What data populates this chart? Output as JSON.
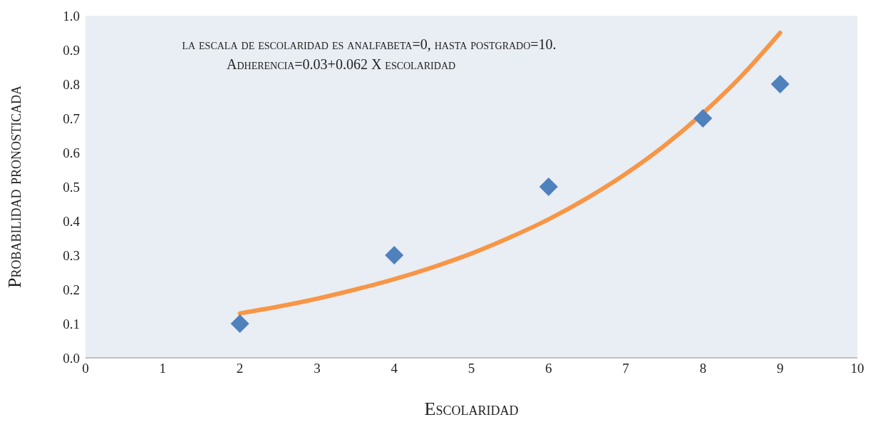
{
  "chart_data": {
    "type": "scatter",
    "xlabel": "Escolaridad",
    "ylabel": "Probabilidad pronosticada",
    "annotations": [
      "la escala de escolaridad es analfabeta=0, hasta postgrado=10.",
      "Adherencia=0.03+0.062 X escolaridad"
    ],
    "series": [
      {
        "color": "#4f81bd",
        "marker": "diamond",
        "x": [
          2,
          4,
          6,
          8,
          9
        ],
        "values": [
          0.1,
          0.3,
          0.5,
          0.7,
          0.8
        ]
      },
      {
        "type": "line",
        "color": "#f79646",
        "marker": "none",
        "x": [
          2,
          2.5,
          3,
          3.5,
          4,
          4.5,
          5,
          5.5,
          6,
          6.5,
          7,
          7.5,
          8,
          8.5,
          9
        ],
        "values": [
          0.13,
          0.15,
          0.173,
          0.2,
          0.23,
          0.265,
          0.305,
          0.352,
          0.405,
          0.467,
          0.538,
          0.62,
          0.715,
          0.824,
          0.95
        ]
      }
    ],
    "xlim": [
      0,
      10
    ],
    "xticks": [
      0,
      1,
      2,
      3,
      4,
      5,
      6,
      7,
      8,
      9,
      10
    ],
    "ylim": [
      0,
      1
    ],
    "yticks": [
      {
        "value": 0,
        "label": "0.0"
      },
      {
        "value": 0.1,
        "label": "0.1"
      },
      {
        "value": 0.2,
        "label": "0.2"
      },
      {
        "value": 0.3,
        "label": "0.3"
      },
      {
        "value": 0.4,
        "label": "0.4"
      },
      {
        "value": 0.5,
        "label": "0.5"
      },
      {
        "value": 0.6,
        "label": "0.6"
      },
      {
        "value": 0.7,
        "label": "0.7"
      },
      {
        "value": 0.8,
        "label": "0.8"
      },
      {
        "value": 0.9,
        "label": "0.9"
      },
      {
        "value": 1,
        "label": "1.0"
      }
    ]
  }
}
